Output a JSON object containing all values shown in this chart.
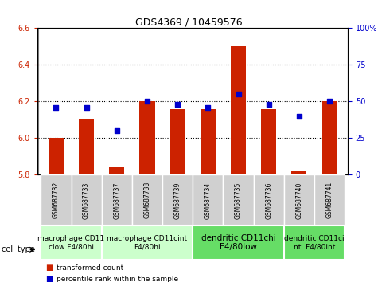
{
  "title": "GDS4369 / 10459576",
  "samples": [
    "GSM687732",
    "GSM687733",
    "GSM687737",
    "GSM687738",
    "GSM687739",
    "GSM687734",
    "GSM687735",
    "GSM687736",
    "GSM687740",
    "GSM687741"
  ],
  "bar_values": [
    6.0,
    6.1,
    5.84,
    6.2,
    6.16,
    6.16,
    6.5,
    6.16,
    5.82,
    6.2
  ],
  "dot_values": [
    46,
    46,
    30,
    50,
    48,
    46,
    55,
    48,
    40,
    50
  ],
  "ylim_left": [
    5.8,
    6.6
  ],
  "ylim_right": [
    0,
    100
  ],
  "yticks_left": [
    5.8,
    6.0,
    6.2,
    6.4,
    6.6
  ],
  "yticks_right": [
    0,
    25,
    50,
    75,
    100
  ],
  "bar_color": "#cc2200",
  "dot_color": "#0000cc",
  "bar_bottom": 5.8,
  "cell_type_groups": [
    {
      "label": "macrophage CD11clow F4/80hi",
      "start": 0,
      "end": 2,
      "color": "#ccffcc"
    },
    {
      "label": "macrophage CD11cint\nF4/80hi",
      "start": 2,
      "end": 5,
      "color": "#ccffcc"
    },
    {
      "label": "dendritic CD11chi\nF4/80low",
      "start": 5,
      "end": 8,
      "color": "#66dd66"
    },
    {
      "label": "dendritic CD11ci\nnt  F4/80int",
      "start": 8,
      "end": 10,
      "color": "#66dd66"
    }
  ],
  "legend_items": [
    {
      "label": "transformed count",
      "color": "#cc2200",
      "marker": "s"
    },
    {
      "label": "percentile rank within the sample",
      "color": "#0000cc",
      "marker": "s"
    }
  ],
  "cell_type_label": "cell type"
}
